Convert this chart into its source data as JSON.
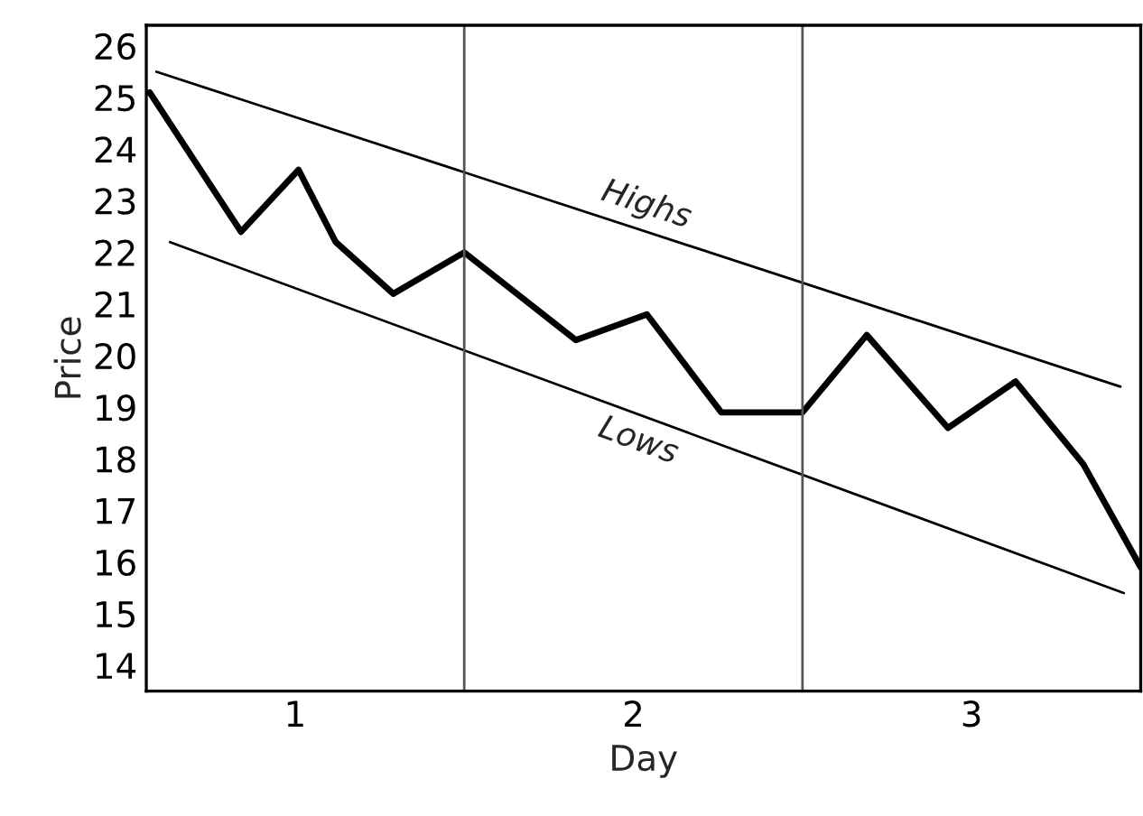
{
  "chart_data": {
    "type": "line",
    "xlabel": "Day",
    "ylabel": "Price",
    "xlim": [
      0.06,
      3.0
    ],
    "ylim": [
      13.5,
      26.4
    ],
    "xticks": [
      {
        "value": 0.5,
        "label": "1"
      },
      {
        "value": 1.5,
        "label": "2"
      },
      {
        "value": 2.5,
        "label": "3"
      }
    ],
    "yticks": [
      14,
      15,
      16,
      17,
      18,
      19,
      20,
      21,
      22,
      23,
      24,
      25,
      26
    ],
    "grid": false,
    "legend": false,
    "marker": "none",
    "line_style": "solid",
    "ref_lines": [
      {
        "axis": "x",
        "value": 1,
        "color": "#555555"
      },
      {
        "axis": "x",
        "value": 2,
        "color": "#555555"
      }
    ],
    "series": [
      {
        "color": "#000000",
        "x": [
          0.07,
          0.34,
          0.51,
          0.62,
          0.79,
          1.0,
          1.33,
          1.54,
          1.76,
          2.0,
          2.19,
          2.43,
          2.63,
          2.83,
          3.0
        ],
        "values": [
          25.1,
          22.4,
          23.6,
          22.2,
          21.2,
          22.0,
          20.3,
          20.8,
          18.9,
          18.9,
          20.4,
          18.6,
          19.5,
          17.9,
          15.9
        ]
      },
      {
        "name": "Highs",
        "color": "#000000",
        "x": [
          0.09,
          2.94
        ],
        "values": [
          25.5,
          19.4
        ]
      },
      {
        "name": "Lows",
        "color": "#000000",
        "x": [
          0.13,
          2.95
        ],
        "values": [
          22.2,
          15.4
        ]
      }
    ]
  }
}
